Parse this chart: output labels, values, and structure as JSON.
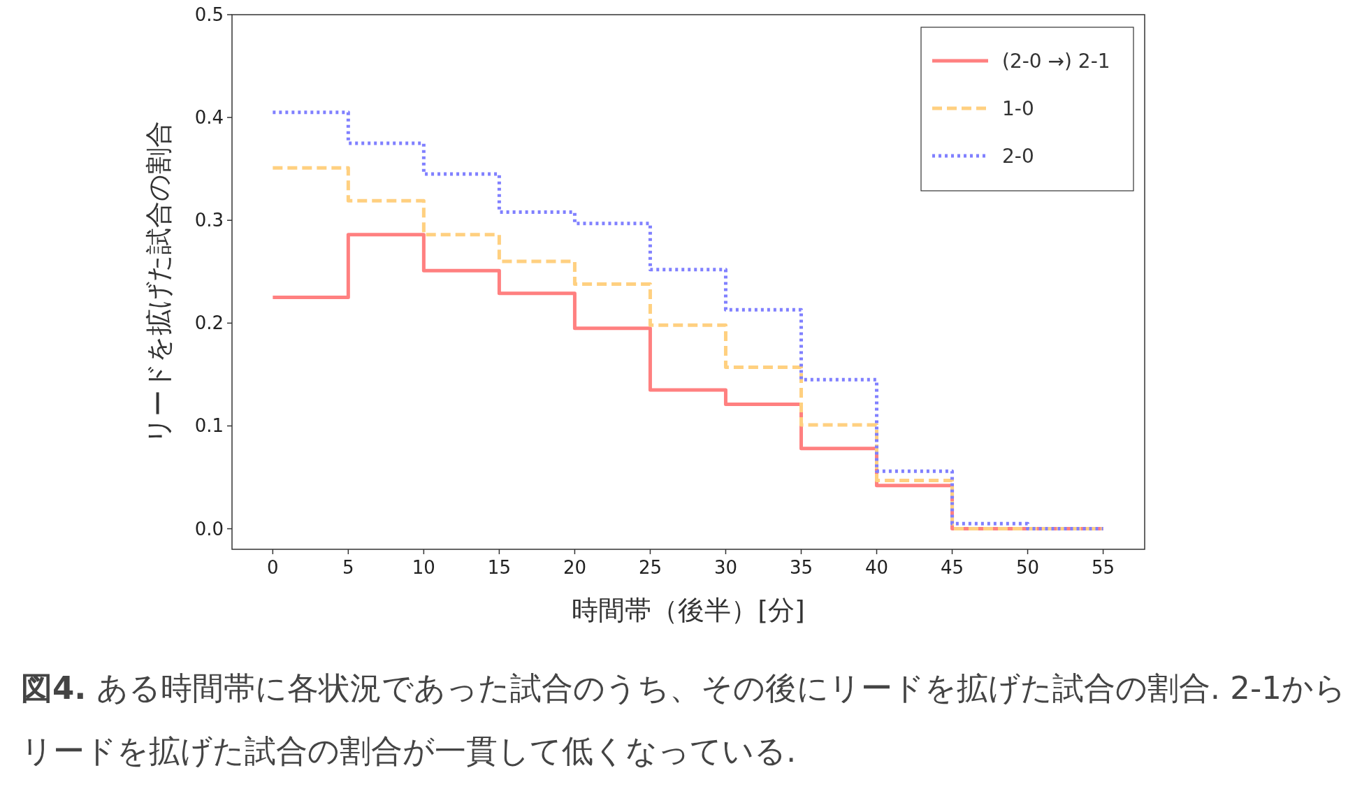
{
  "chart_data": {
    "type": "step",
    "xlabel": "時間帯（後半）[分]",
    "ylabel": "リードを拡げた試合の割合",
    "x": [
      0,
      5,
      10,
      15,
      20,
      25,
      30,
      35,
      40,
      45,
      50,
      55
    ],
    "series": [
      {
        "name": "(2-0 →) 2-1",
        "color": "#ff8080",
        "line_style": "solid",
        "values": [
          0.225,
          0.286,
          0.251,
          0.229,
          0.195,
          0.135,
          0.121,
          0.078,
          0.042,
          0,
          0,
          0
        ]
      },
      {
        "name": "1-0",
        "color": "#ffd080",
        "line_style": "dashed",
        "values": [
          0.351,
          0.319,
          0.286,
          0.26,
          0.238,
          0.198,
          0.157,
          0.101,
          0.047,
          0,
          0,
          0
        ]
      },
      {
        "name": "2-0",
        "color": "#8080ff",
        "line_style": "dotted",
        "values": [
          0.405,
          0.375,
          0.345,
          0.308,
          0.297,
          0.252,
          0.213,
          0.145,
          0.056,
          0.005,
          0,
          0
        ]
      }
    ],
    "xlim": [
      -2.7,
      57.75
    ],
    "xticks": [
      0,
      5,
      10,
      15,
      20,
      25,
      30,
      35,
      40,
      45,
      50,
      55
    ],
    "ylim": [
      -0.02,
      0.5
    ],
    "yticks": [
      {
        "value": 0,
        "label": "0.0"
      },
      0.1,
      0.2,
      0.3,
      0.4,
      0.5
    ],
    "grid": false,
    "legend": "top right",
    "annotations": [
      "図4.",
      "ある時間帯に各状況であった試合のうち、その後にリードを拡げた試合の割合. 2-1からリードを拡げた試合の割合が一貫して低くなっている."
    ]
  }
}
